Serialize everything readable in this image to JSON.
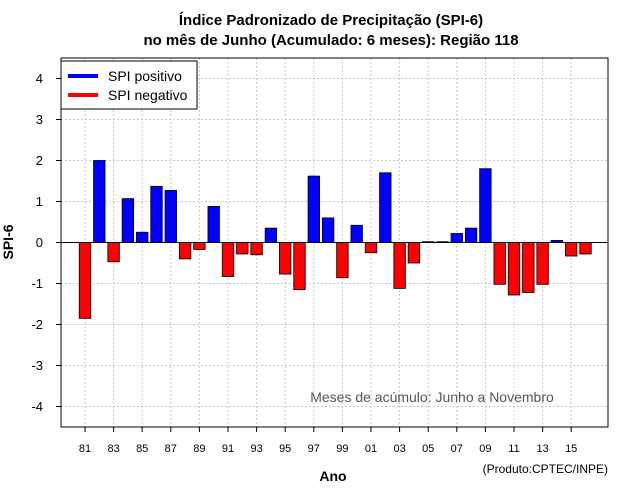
{
  "chart_data": {
    "type": "bar",
    "title_line1": "Índice Padronizado de Precipitação (SPI-6)",
    "title_line2": "no mês de Junho (Acumulado: 6 meses): Região 118",
    "xlabel": "Ano",
    "ylabel": "SPI-6",
    "ylim": [
      -4.5,
      4.5
    ],
    "y_ticks": [
      -4,
      -3,
      -2,
      -1,
      0,
      1,
      2,
      3,
      4
    ],
    "grid": true,
    "categories": [
      "81",
      "82",
      "83",
      "84",
      "85",
      "86",
      "87",
      "88",
      "89",
      "90",
      "91",
      "92",
      "93",
      "94",
      "95",
      "96",
      "97",
      "98",
      "99",
      "00",
      "01",
      "02",
      "03",
      "04",
      "05",
      "06",
      "07",
      "08",
      "09",
      "10",
      "11",
      "12",
      "13",
      "14",
      "15",
      "16"
    ],
    "x_tick_labels": [
      "81",
      "83",
      "85",
      "87",
      "89",
      "91",
      "93",
      "95",
      "97",
      "99",
      "01",
      "03",
      "05",
      "07",
      "09",
      "11",
      "13",
      "15"
    ],
    "values": [
      -1.85,
      2.0,
      -0.47,
      1.07,
      0.25,
      1.37,
      1.27,
      -0.4,
      -0.17,
      0.88,
      -0.83,
      -0.28,
      -0.3,
      0.35,
      -0.77,
      -1.15,
      1.62,
      0.6,
      -0.86,
      0.42,
      -0.25,
      1.7,
      -1.12,
      -0.5,
      0.02,
      0.02,
      0.22,
      0.35,
      1.8,
      -1.02,
      -1.28,
      -1.22,
      -1.02,
      0.05,
      -0.33,
      -0.28
    ],
    "legend": [
      {
        "label": "SPI positivo",
        "color": "#0000ff"
      },
      {
        "label": "SPI negativo",
        "color": "#ff0000"
      }
    ],
    "legend_position": "top-left",
    "annotation": "Meses de acúmulo: Junho a Novembro",
    "credit": "(Produto:CPTEC/INPE)"
  },
  "colors": {
    "positive": "#0000ff",
    "negative": "#ff0000",
    "grid": "#c8c8c8",
    "annotation": "#555555"
  }
}
